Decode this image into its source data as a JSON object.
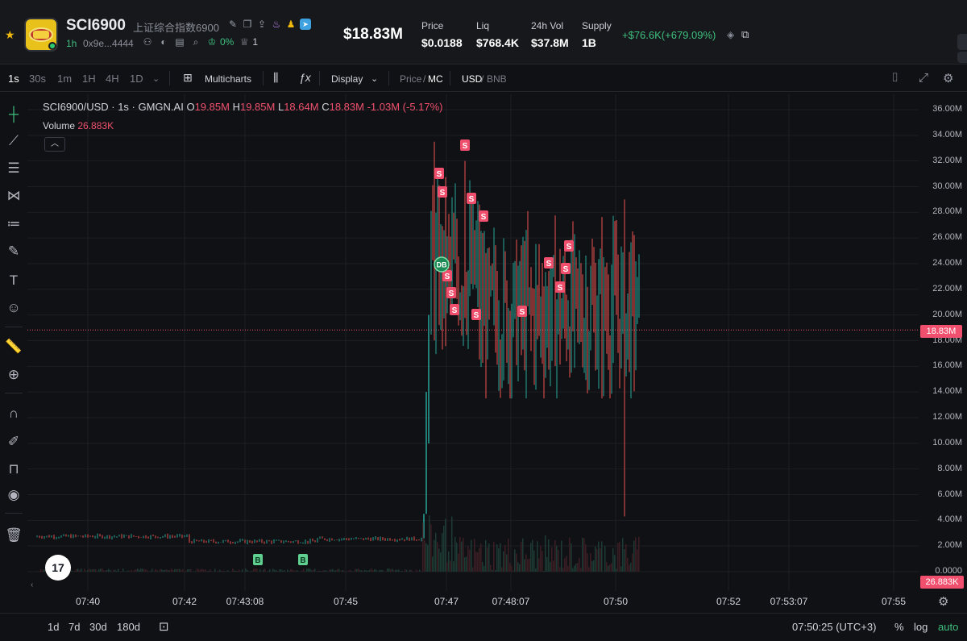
{
  "header": {
    "ticker": "SCI6900",
    "full_name": "上证综合指数6900",
    "age": "1h",
    "address": "0x9e...4444",
    "holders_pct": "0%",
    "count": "1",
    "market_cap": "$18.83M",
    "stats": [
      {
        "label": "Price",
        "value": "$0.0188"
      },
      {
        "label": "Liq",
        "value": "$768.4K"
      },
      {
        "label": "24h Vol",
        "value": "$37.8M"
      },
      {
        "label": "Supply",
        "value": "1B"
      }
    ],
    "change": "+$76.6K(+679.09%)"
  },
  "toolbar": {
    "intervals": [
      "1s",
      "30s",
      "1m",
      "1H",
      "4H",
      "1D"
    ],
    "active_interval": "1s",
    "multicharts": "Multicharts",
    "display": "Display",
    "price": "Price",
    "mc": "MC",
    "usd": "USD",
    "bnb": "BNB",
    "slash": "/"
  },
  "legend": {
    "symbol": "SCI6900/USD · 1s · GMGN.AI",
    "o_label": "O",
    "o": "19.85M",
    "h_label": "H",
    "h": "19.85M",
    "l_label": "L",
    "l": "18.64M",
    "c_label": "C",
    "c": "18.83M",
    "chg": "-1.03M (-5.17%)",
    "volume_label": "Volume",
    "volume": "26.883K"
  },
  "chart_data": {
    "type": "candlestick",
    "y_ticks": [
      "36.00M",
      "34.00M",
      "32.00M",
      "30.00M",
      "28.00M",
      "26.00M",
      "24.00M",
      "22.00M",
      "20.00M",
      "18.00M",
      "16.00M",
      "14.00M",
      "12.00M",
      "10.00M",
      "8.00M",
      "6.00M",
      "4.00M",
      "2.00M",
      "0.0000"
    ],
    "ylim": [
      0,
      37
    ],
    "x_ticks": [
      "07:40",
      "07:42",
      "07:43:08",
      "07:45",
      "07:47",
      "07:48:07",
      "07:50",
      "07:52",
      "07:53:07",
      "07:55"
    ],
    "last_price": "18.83M",
    "last_volume": "26.883K",
    "markers": [
      {
        "type": "B",
        "label": "B"
      },
      {
        "type": "B",
        "label": "B"
      },
      {
        "type": "DB",
        "label": "DB"
      },
      {
        "type": "S",
        "label": "S"
      }
    ],
    "colors": {
      "up": "#26a69a",
      "down": "#ef5350"
    }
  },
  "footer": {
    "ranges": [
      "1d",
      "7d",
      "30d",
      "180d"
    ],
    "time": "07:50:25 (UTC+3)",
    "pct": "%",
    "log": "log",
    "auto": "auto"
  },
  "tv_logo": "17"
}
